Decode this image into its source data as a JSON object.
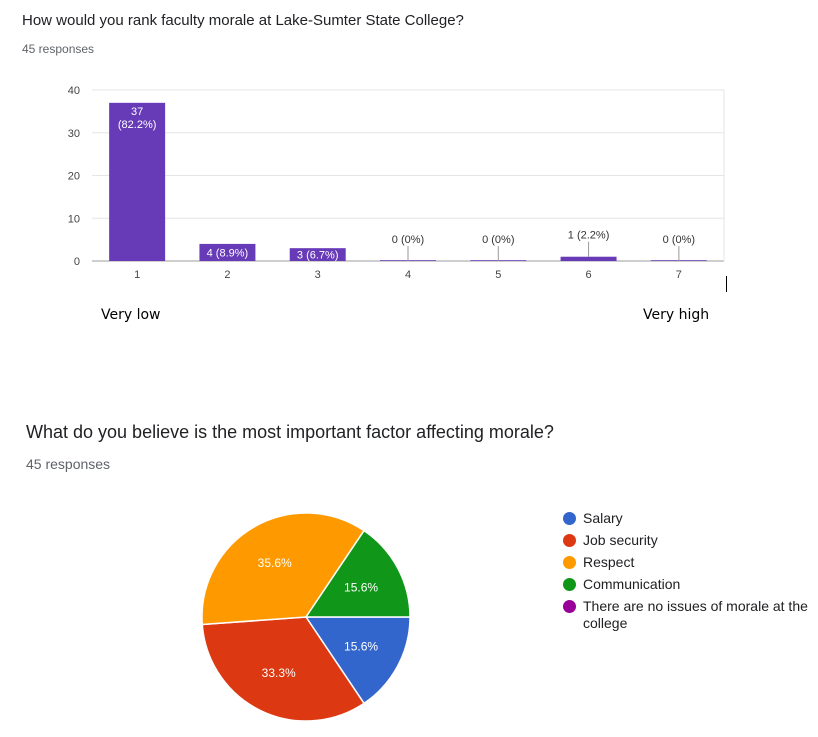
{
  "chart_data": [
    {
      "type": "bar",
      "title": "How would you rank faculty morale at Lake-Sumter State College?",
      "subtitle": "45 responses",
      "categories": [
        "1",
        "2",
        "3",
        "4",
        "5",
        "6",
        "7"
      ],
      "values": [
        37,
        4,
        3,
        0,
        0,
        1,
        0
      ],
      "data_labels": [
        "37 (82.2%)",
        "4 (8.9%)",
        "3 (6.7%)",
        "0 (0%)",
        "0 (0%)",
        "1 (2.2%)",
        "0 (0%)"
      ],
      "yticks": [
        0,
        10,
        20,
        30,
        40
      ],
      "ylim": [
        0,
        40
      ],
      "grid": true,
      "color": "#673ab7",
      "scale_labels": {
        "low": "Very low",
        "high": "Very high"
      }
    },
    {
      "type": "pie",
      "title": "What do you believe is the most important factor affecting morale?",
      "subtitle": "45 responses",
      "slices": [
        {
          "label": "Salary",
          "value": 15.6,
          "display": "15.6%",
          "color": "#3366cc"
        },
        {
          "label": "Job security",
          "value": 33.3,
          "display": "33.3%",
          "color": "#dc3912"
        },
        {
          "label": "Respect",
          "value": 35.6,
          "display": "35.6%",
          "color": "#ff9900"
        },
        {
          "label": "Communication",
          "value": 15.6,
          "display": "15.6%",
          "color": "#109618"
        },
        {
          "label": "There are no issues of morale at the college",
          "value": 0,
          "display": "",
          "color": "#990099"
        }
      ],
      "legend_position": "right"
    }
  ]
}
